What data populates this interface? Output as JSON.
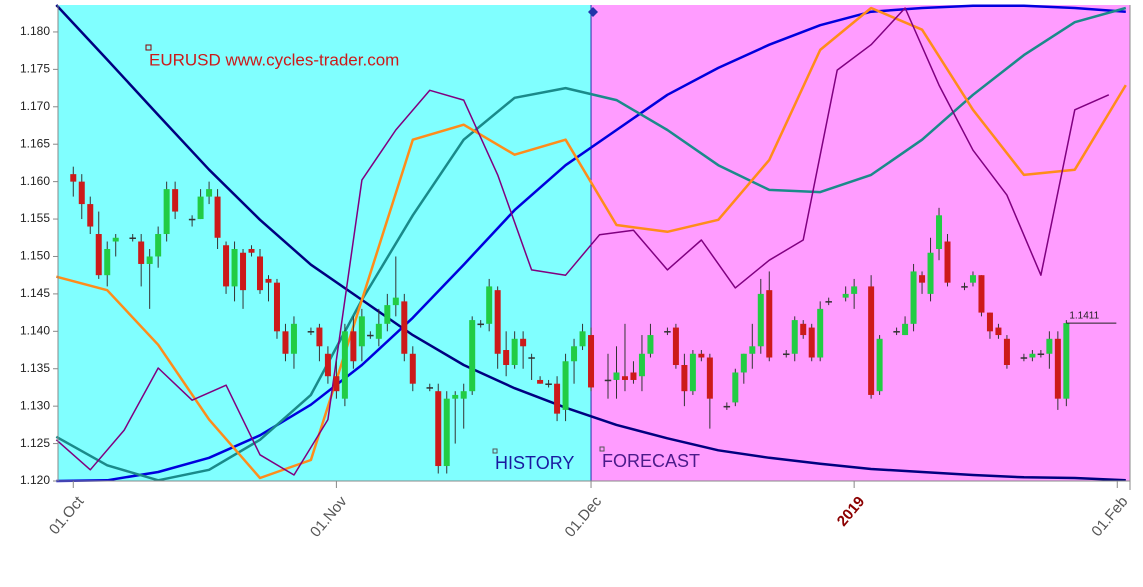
{
  "chart_data": {
    "type": "candlestick",
    "title": "EURUSD www.cycles-trader.com",
    "xlim": [
      -1.8,
      124.5
    ],
    "ylim": [
      1.12,
      1.1836
    ],
    "xticks": [
      {
        "value": 0,
        "label": "01.Oct"
      },
      {
        "value": 31,
        "label": "01.Nov"
      },
      {
        "value": 61,
        "label": "01.Dec"
      },
      {
        "value": 92,
        "label": "2019",
        "color": "#8b0000"
      },
      {
        "value": 123,
        "label": "01.Feb"
      }
    ],
    "yticks": [
      {
        "value": 1.12,
        "label": "1.120"
      },
      {
        "value": 1.125,
        "label": "1.125"
      },
      {
        "value": 1.13,
        "label": "1.130"
      },
      {
        "value": 1.135,
        "label": "1.135"
      },
      {
        "value": 1.14,
        "label": "1.140"
      },
      {
        "value": 1.145,
        "label": "1.145"
      },
      {
        "value": 1.15,
        "label": "1.150"
      },
      {
        "value": 1.155,
        "label": "1.155"
      },
      {
        "value": 1.16,
        "label": "1.160"
      },
      {
        "value": 1.165,
        "label": "1.165"
      },
      {
        "value": 1.17,
        "label": "1.170"
      },
      {
        "value": 1.175,
        "label": "1.175"
      },
      {
        "value": 1.18,
        "label": "1.180"
      }
    ],
    "regions": [
      {
        "name": "HISTORY",
        "color": "#80ffff",
        "text_color": "#1a1aa0",
        "from": -1.8,
        "to": 61
      },
      {
        "name": "FORECAST",
        "color": "#ff9cff",
        "text_color": "#4b1a8a",
        "from": 61,
        "to": 124.5
      }
    ],
    "last_price": 1.1411,
    "up_color": "#22cc44",
    "down_color": "#cc1a1a",
    "candles": {
      "x": [
        0,
        1,
        2,
        3,
        4,
        5,
        7,
        8,
        9,
        10,
        11,
        12,
        14,
        15,
        16,
        17,
        18,
        19,
        20,
        21,
        22,
        23,
        24,
        25,
        26,
        28,
        29,
        30,
        31,
        32,
        33,
        34,
        35,
        36,
        37,
        38,
        39,
        40,
        42,
        43,
        44,
        45,
        46,
        47,
        48,
        49,
        50,
        51,
        52,
        53,
        54,
        55,
        56,
        57,
        58,
        59,
        60,
        61,
        63,
        64,
        65,
        66,
        67,
        68,
        70,
        71,
        72,
        73,
        74,
        75,
        77,
        78,
        79,
        80,
        81,
        82,
        84,
        85,
        86,
        87,
        88,
        89,
        91,
        92,
        94,
        95,
        97,
        98,
        99,
        100,
        101,
        102,
        103,
        105,
        106,
        107,
        108,
        109,
        110,
        112,
        113,
        114,
        115,
        116,
        117
      ],
      "open": [
        1.161,
        1.16,
        1.157,
        1.153,
        1.1475,
        1.152,
        1.1525,
        1.152,
        1.149,
        1.15,
        1.153,
        1.159,
        1.155,
        1.155,
        1.158,
        1.158,
        1.1515,
        1.146,
        1.1505,
        1.151,
        1.15,
        1.147,
        1.1465,
        1.14,
        1.137,
        1.14,
        1.1405,
        1.137,
        1.134,
        1.131,
        1.14,
        1.138,
        1.1395,
        1.139,
        1.141,
        1.1435,
        1.144,
        1.137,
        1.1325,
        1.132,
        1.122,
        1.131,
        1.131,
        1.132,
        1.141,
        1.141,
        1.1455,
        1.1375,
        1.1355,
        1.139,
        1.1365,
        1.1335,
        1.133,
        1.133,
        1.1295,
        1.136,
        1.138,
        1.1395,
        1.1335,
        1.1335,
        1.134,
        1.1345,
        1.134,
        1.137,
        1.14,
        1.1405,
        1.1355,
        1.132,
        1.137,
        1.1365,
        1.13,
        1.1305,
        1.1345,
        1.137,
        1.138,
        1.1455,
        1.137,
        1.137,
        1.141,
        1.1405,
        1.1365,
        1.144,
        1.1445,
        1.145,
        1.146,
        1.132,
        1.14,
        1.1395,
        1.141,
        1.1475,
        1.145,
        1.151,
        1.152,
        1.146,
        1.1465,
        1.1475,
        1.1425,
        1.1405,
        1.139,
        1.1365,
        1.1365,
        1.137,
        1.137,
        1.139,
        1.131
      ],
      "high": [
        1.162,
        1.161,
        1.158,
        1.156,
        1.152,
        1.153,
        1.153,
        1.153,
        1.151,
        1.154,
        1.16,
        1.16,
        1.1555,
        1.159,
        1.16,
        1.159,
        1.152,
        1.152,
        1.151,
        1.1515,
        1.151,
        1.1475,
        1.147,
        1.141,
        1.142,
        1.1405,
        1.141,
        1.138,
        1.136,
        1.141,
        1.142,
        1.143,
        1.14,
        1.143,
        1.145,
        1.15,
        1.145,
        1.138,
        1.133,
        1.133,
        1.132,
        1.132,
        1.133,
        1.142,
        1.1415,
        1.147,
        1.146,
        1.14,
        1.14,
        1.14,
        1.137,
        1.134,
        1.1335,
        1.134,
        1.137,
        1.139,
        1.141,
        1.1405,
        1.137,
        1.138,
        1.141,
        1.136,
        1.1395,
        1.141,
        1.1405,
        1.141,
        1.137,
        1.1375,
        1.1375,
        1.137,
        1.1305,
        1.135,
        1.137,
        1.141,
        1.147,
        1.148,
        1.1375,
        1.142,
        1.1415,
        1.141,
        1.144,
        1.1445,
        1.146,
        1.147,
        1.1475,
        1.1395,
        1.1405,
        1.142,
        1.149,
        1.148,
        1.1525,
        1.1565,
        1.153,
        1.1465,
        1.148,
        1.1475,
        1.1425,
        1.141,
        1.1395,
        1.137,
        1.1375,
        1.1375,
        1.14,
        1.14,
        1.1415
      ],
      "low": [
        1.158,
        1.155,
        1.153,
        1.147,
        1.146,
        1.15,
        1.152,
        1.146,
        1.143,
        1.1485,
        1.152,
        1.155,
        1.154,
        1.155,
        1.157,
        1.151,
        1.145,
        1.144,
        1.143,
        1.15,
        1.145,
        1.144,
        1.139,
        1.136,
        1.135,
        1.1395,
        1.136,
        1.133,
        1.131,
        1.13,
        1.135,
        1.136,
        1.139,
        1.138,
        1.14,
        1.142,
        1.136,
        1.132,
        1.132,
        1.121,
        1.121,
        1.125,
        1.127,
        1.1315,
        1.1405,
        1.14,
        1.135,
        1.134,
        1.135,
        1.135,
        1.1335,
        1.133,
        1.1325,
        1.128,
        1.128,
        1.133,
        1.1375,
        1.132,
        1.131,
        1.131,
        1.132,
        1.133,
        1.132,
        1.1365,
        1.1395,
        1.135,
        1.13,
        1.1315,
        1.136,
        1.127,
        1.1295,
        1.13,
        1.133,
        1.135,
        1.137,
        1.136,
        1.1365,
        1.136,
        1.139,
        1.136,
        1.136,
        1.1435,
        1.144,
        1.143,
        1.131,
        1.1315,
        1.1395,
        1.1395,
        1.14,
        1.145,
        1.144,
        1.1495,
        1.146,
        1.1455,
        1.146,
        1.142,
        1.139,
        1.139,
        1.135,
        1.136,
        1.136,
        1.1365,
        1.135,
        1.1295,
        1.13
      ],
      "close": [
        1.16,
        1.157,
        1.154,
        1.1475,
        1.151,
        1.1525,
        1.1525,
        1.149,
        1.15,
        1.153,
        1.159,
        1.156,
        1.155,
        1.158,
        1.159,
        1.1525,
        1.146,
        1.151,
        1.1455,
        1.1505,
        1.1455,
        1.1465,
        1.14,
        1.137,
        1.141,
        1.14,
        1.138,
        1.134,
        1.132,
        1.14,
        1.136,
        1.142,
        1.1395,
        1.141,
        1.1435,
        1.1445,
        1.137,
        1.133,
        1.1325,
        1.122,
        1.131,
        1.1315,
        1.132,
        1.1415,
        1.141,
        1.146,
        1.137,
        1.1355,
        1.139,
        1.138,
        1.1365,
        1.133,
        1.133,
        1.129,
        1.136,
        1.138,
        1.14,
        1.1325,
        1.1335,
        1.1345,
        1.1335,
        1.1335,
        1.137,
        1.1395,
        1.14,
        1.1355,
        1.132,
        1.137,
        1.1365,
        1.131,
        1.13,
        1.1345,
        1.137,
        1.138,
        1.145,
        1.1365,
        1.137,
        1.1415,
        1.1395,
        1.1365,
        1.143,
        1.144,
        1.145,
        1.146,
        1.1315,
        1.139,
        1.14,
        1.141,
        1.148,
        1.1465,
        1.1505,
        1.1555,
        1.1465,
        1.146,
        1.1475,
        1.1425,
        1.14,
        1.1395,
        1.1355,
        1.1365,
        1.137,
        1.137,
        1.139,
        1.131,
        1.1411
      ]
    },
    "series": [
      {
        "color": "#000080",
        "width": 2.5,
        "x": [
          -2,
          4,
          10,
          16,
          22,
          28,
          34,
          40,
          46,
          52,
          58,
          64,
          70,
          76,
          82,
          88,
          94,
          100,
          106,
          112,
          118,
          124
        ],
        "values": [
          1.1836,
          1.1763,
          1.1689,
          1.1616,
          1.1549,
          1.1489,
          1.1442,
          1.1395,
          1.1355,
          1.1324,
          1.1298,
          1.1275,
          1.1257,
          1.1241,
          1.1231,
          1.1223,
          1.1216,
          1.1212,
          1.1208,
          1.1205,
          1.1204,
          1.1201
        ]
      },
      {
        "color": "#0000dd",
        "width": 2.5,
        "x": [
          -2,
          4,
          10,
          16,
          22,
          28,
          34,
          40,
          46,
          52,
          58,
          64,
          70,
          76,
          82,
          88,
          94,
          100,
          106,
          112,
          118,
          124
        ],
        "values": [
          1.12,
          1.1201,
          1.1212,
          1.1231,
          1.1261,
          1.1302,
          1.1355,
          1.1418,
          1.1489,
          1.1562,
          1.1622,
          1.1669,
          1.1716,
          1.1752,
          1.1783,
          1.1809,
          1.1827,
          1.1832,
          1.1835,
          1.1835,
          1.1832,
          1.1827
        ]
      },
      {
        "color": "#1a8a8a",
        "width": 2.5,
        "x": [
          -2,
          4,
          10,
          16,
          22,
          28,
          34,
          40,
          46,
          52,
          58,
          64,
          70,
          76,
          82,
          88,
          94,
          100,
          106,
          112,
          118,
          124
        ],
        "values": [
          1.1259,
          1.1221,
          1.1201,
          1.1215,
          1.1255,
          1.1315,
          1.1442,
          1.1555,
          1.1656,
          1.1712,
          1.1725,
          1.1709,
          1.1669,
          1.1622,
          1.1589,
          1.1586,
          1.1609,
          1.1656,
          1.1716,
          1.1769,
          1.1813,
          1.1832
        ]
      },
      {
        "color": "#ff8c1a",
        "width": 2.5,
        "x": [
          -2,
          4,
          10,
          16,
          22,
          28,
          34,
          40,
          46,
          52,
          58,
          64,
          70,
          76,
          82,
          88,
          94,
          100,
          106,
          112,
          118,
          124
        ],
        "values": [
          1.1473,
          1.1455,
          1.1382,
          1.1282,
          1.1204,
          1.1228,
          1.1442,
          1.1656,
          1.1676,
          1.1636,
          1.1656,
          1.1542,
          1.1533,
          1.1549,
          1.1629,
          1.1776,
          1.1832,
          1.1803,
          1.1696,
          1.1609,
          1.1616,
          1.1729
        ]
      },
      {
        "color": "#800080",
        "width": 1.5,
        "x": [
          -2,
          2,
          6,
          10,
          14,
          18,
          22,
          26,
          30,
          34,
          38,
          42,
          46,
          50,
          54,
          58,
          62,
          66,
          70,
          74,
          78,
          82,
          86,
          90,
          94,
          98,
          102,
          106,
          110,
          114,
          118,
          122
        ],
        "values": [
          1.1255,
          1.1215,
          1.1268,
          1.1351,
          1.1308,
          1.1328,
          1.1235,
          1.1208,
          1.1282,
          1.1602,
          1.1669,
          1.1722,
          1.1709,
          1.1609,
          1.1482,
          1.1475,
          1.1529,
          1.1535,
          1.1482,
          1.1522,
          1.1458,
          1.1495,
          1.1522,
          1.1749,
          1.1783,
          1.1832,
          1.1729,
          1.1642,
          1.1582,
          1.1475,
          1.1696,
          1.1716
        ]
      }
    ]
  }
}
